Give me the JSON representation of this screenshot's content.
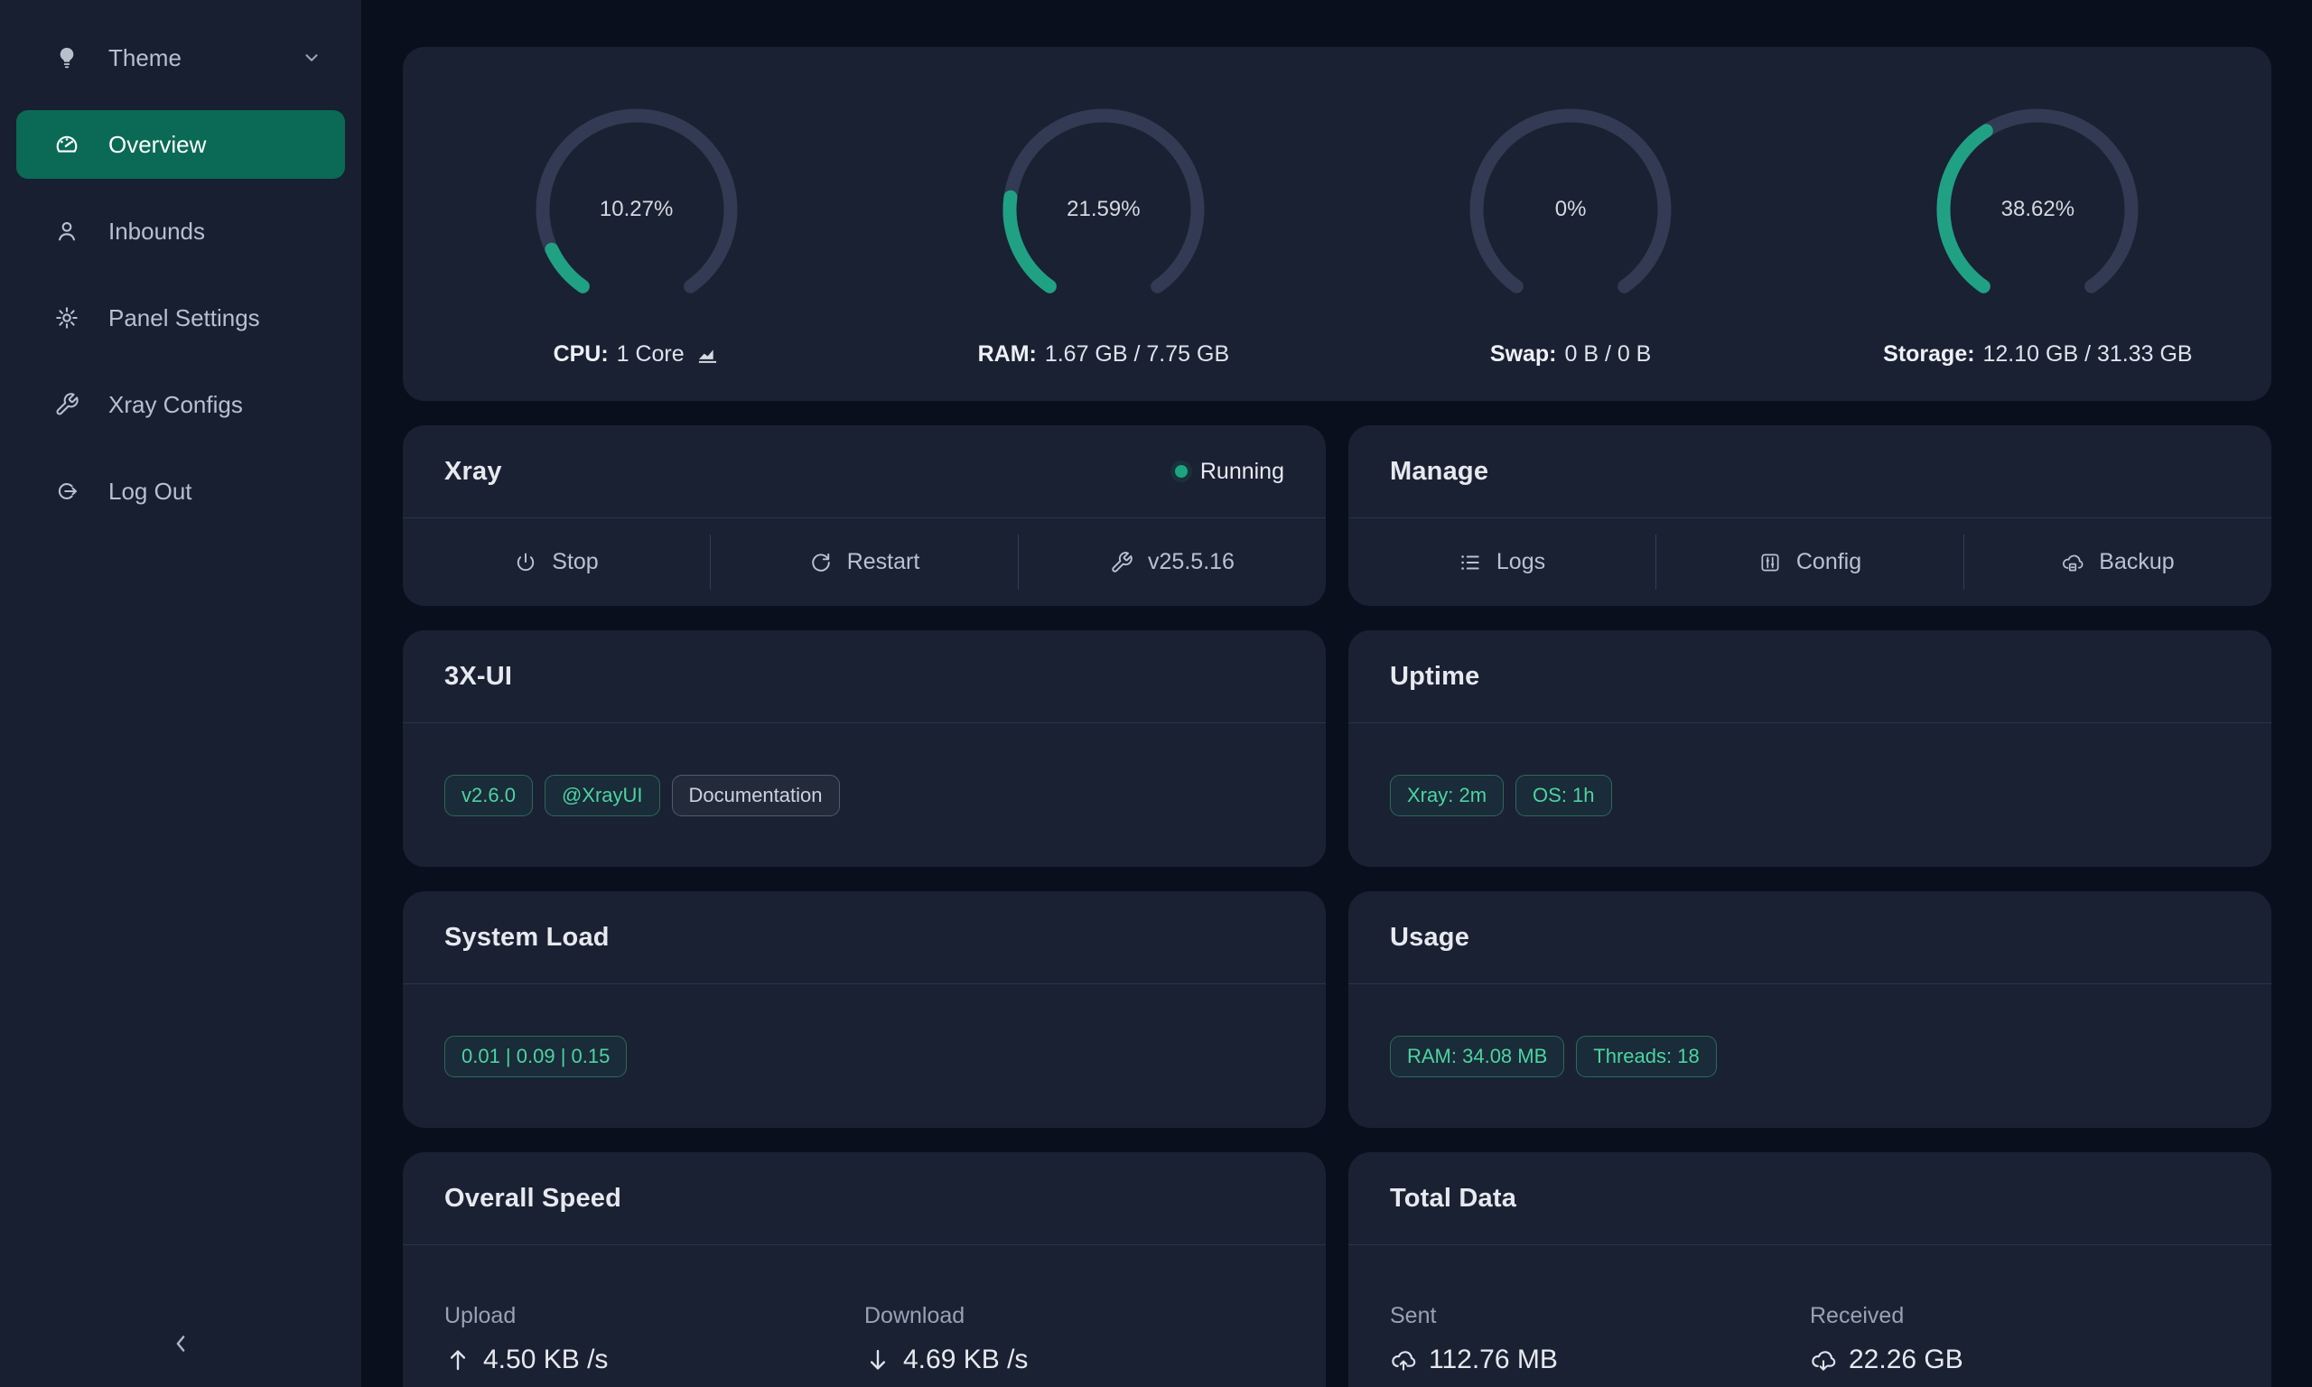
{
  "theme": {
    "accent_green": "#20a184",
    "track": "#323b53",
    "active_item_bg": "#0a6a55",
    "card_bg": "#1a2133",
    "page_bg": "#0a0f1d",
    "sidebar_bg": "#181f31"
  },
  "sidebar": {
    "items": [
      {
        "label": "Theme",
        "icon": "bulb-icon",
        "has_chevron": true
      },
      {
        "label": "Overview",
        "icon": "gauge-icon",
        "active": true
      },
      {
        "label": "Inbounds",
        "icon": "user-icon"
      },
      {
        "label": "Panel Settings",
        "icon": "gear-icon"
      },
      {
        "label": "Xray Configs",
        "icon": "wrench-icon"
      },
      {
        "label": "Log Out",
        "icon": "logout-icon"
      }
    ]
  },
  "gauges": [
    {
      "percent": 10.27,
      "percent_label": "10.27%",
      "label_bold": "CPU:",
      "label_rest": "1 Core",
      "has_chart_icon": true
    },
    {
      "percent": 21.59,
      "percent_label": "21.59%",
      "label_bold": "RAM:",
      "label_rest": "1.67 GB / 7.75 GB"
    },
    {
      "percent": 0,
      "percent_label": "0%",
      "label_bold": "Swap:",
      "label_rest": "0 B / 0 B"
    },
    {
      "percent": 38.62,
      "percent_label": "38.62%",
      "label_bold": "Storage:",
      "label_rest": "12.10 GB / 31.33 GB"
    }
  ],
  "cards": {
    "xray": {
      "title": "Xray",
      "status": "Running",
      "buttons": [
        {
          "label": "Stop",
          "icon": "power-icon"
        },
        {
          "label": "Restart",
          "icon": "refresh-icon"
        },
        {
          "label": "v25.5.16",
          "icon": "wrench-icon"
        }
      ]
    },
    "manage": {
      "title": "Manage",
      "buttons": [
        {
          "label": "Logs",
          "icon": "list-icon"
        },
        {
          "label": "Config",
          "icon": "sliders-icon"
        },
        {
          "label": "Backup",
          "icon": "cloud-save-icon"
        }
      ]
    },
    "three_x_ui": {
      "title": "3X-UI",
      "badges": [
        {
          "label": "v2.6.0",
          "style": "green"
        },
        {
          "label": "@XrayUI",
          "style": "green"
        },
        {
          "label": "Documentation",
          "style": "gray"
        }
      ]
    },
    "uptime": {
      "title": "Uptime",
      "badges": [
        {
          "label": "Xray: 2m"
        },
        {
          "label": "OS: 1h"
        }
      ]
    },
    "system_load": {
      "title": "System Load",
      "badges": [
        {
          "label": "0.01 | 0.09 | 0.15"
        }
      ]
    },
    "usage": {
      "title": "Usage",
      "badges": [
        {
          "label": "RAM: 34.08 MB"
        },
        {
          "label": "Threads: 18"
        }
      ]
    },
    "overall_speed": {
      "title": "Overall Speed",
      "stats": [
        {
          "label": "Upload",
          "value": "4.50 KB /s",
          "icon": "arrow-up-icon"
        },
        {
          "label": "Download",
          "value": "4.69 KB /s",
          "icon": "arrow-down-icon"
        }
      ]
    },
    "total_data": {
      "title": "Total Data",
      "stats": [
        {
          "label": "Sent",
          "value": "112.76 MB",
          "icon": "cloud-up-icon"
        },
        {
          "label": "Received",
          "value": "22.26 GB",
          "icon": "cloud-down-icon"
        }
      ]
    }
  }
}
